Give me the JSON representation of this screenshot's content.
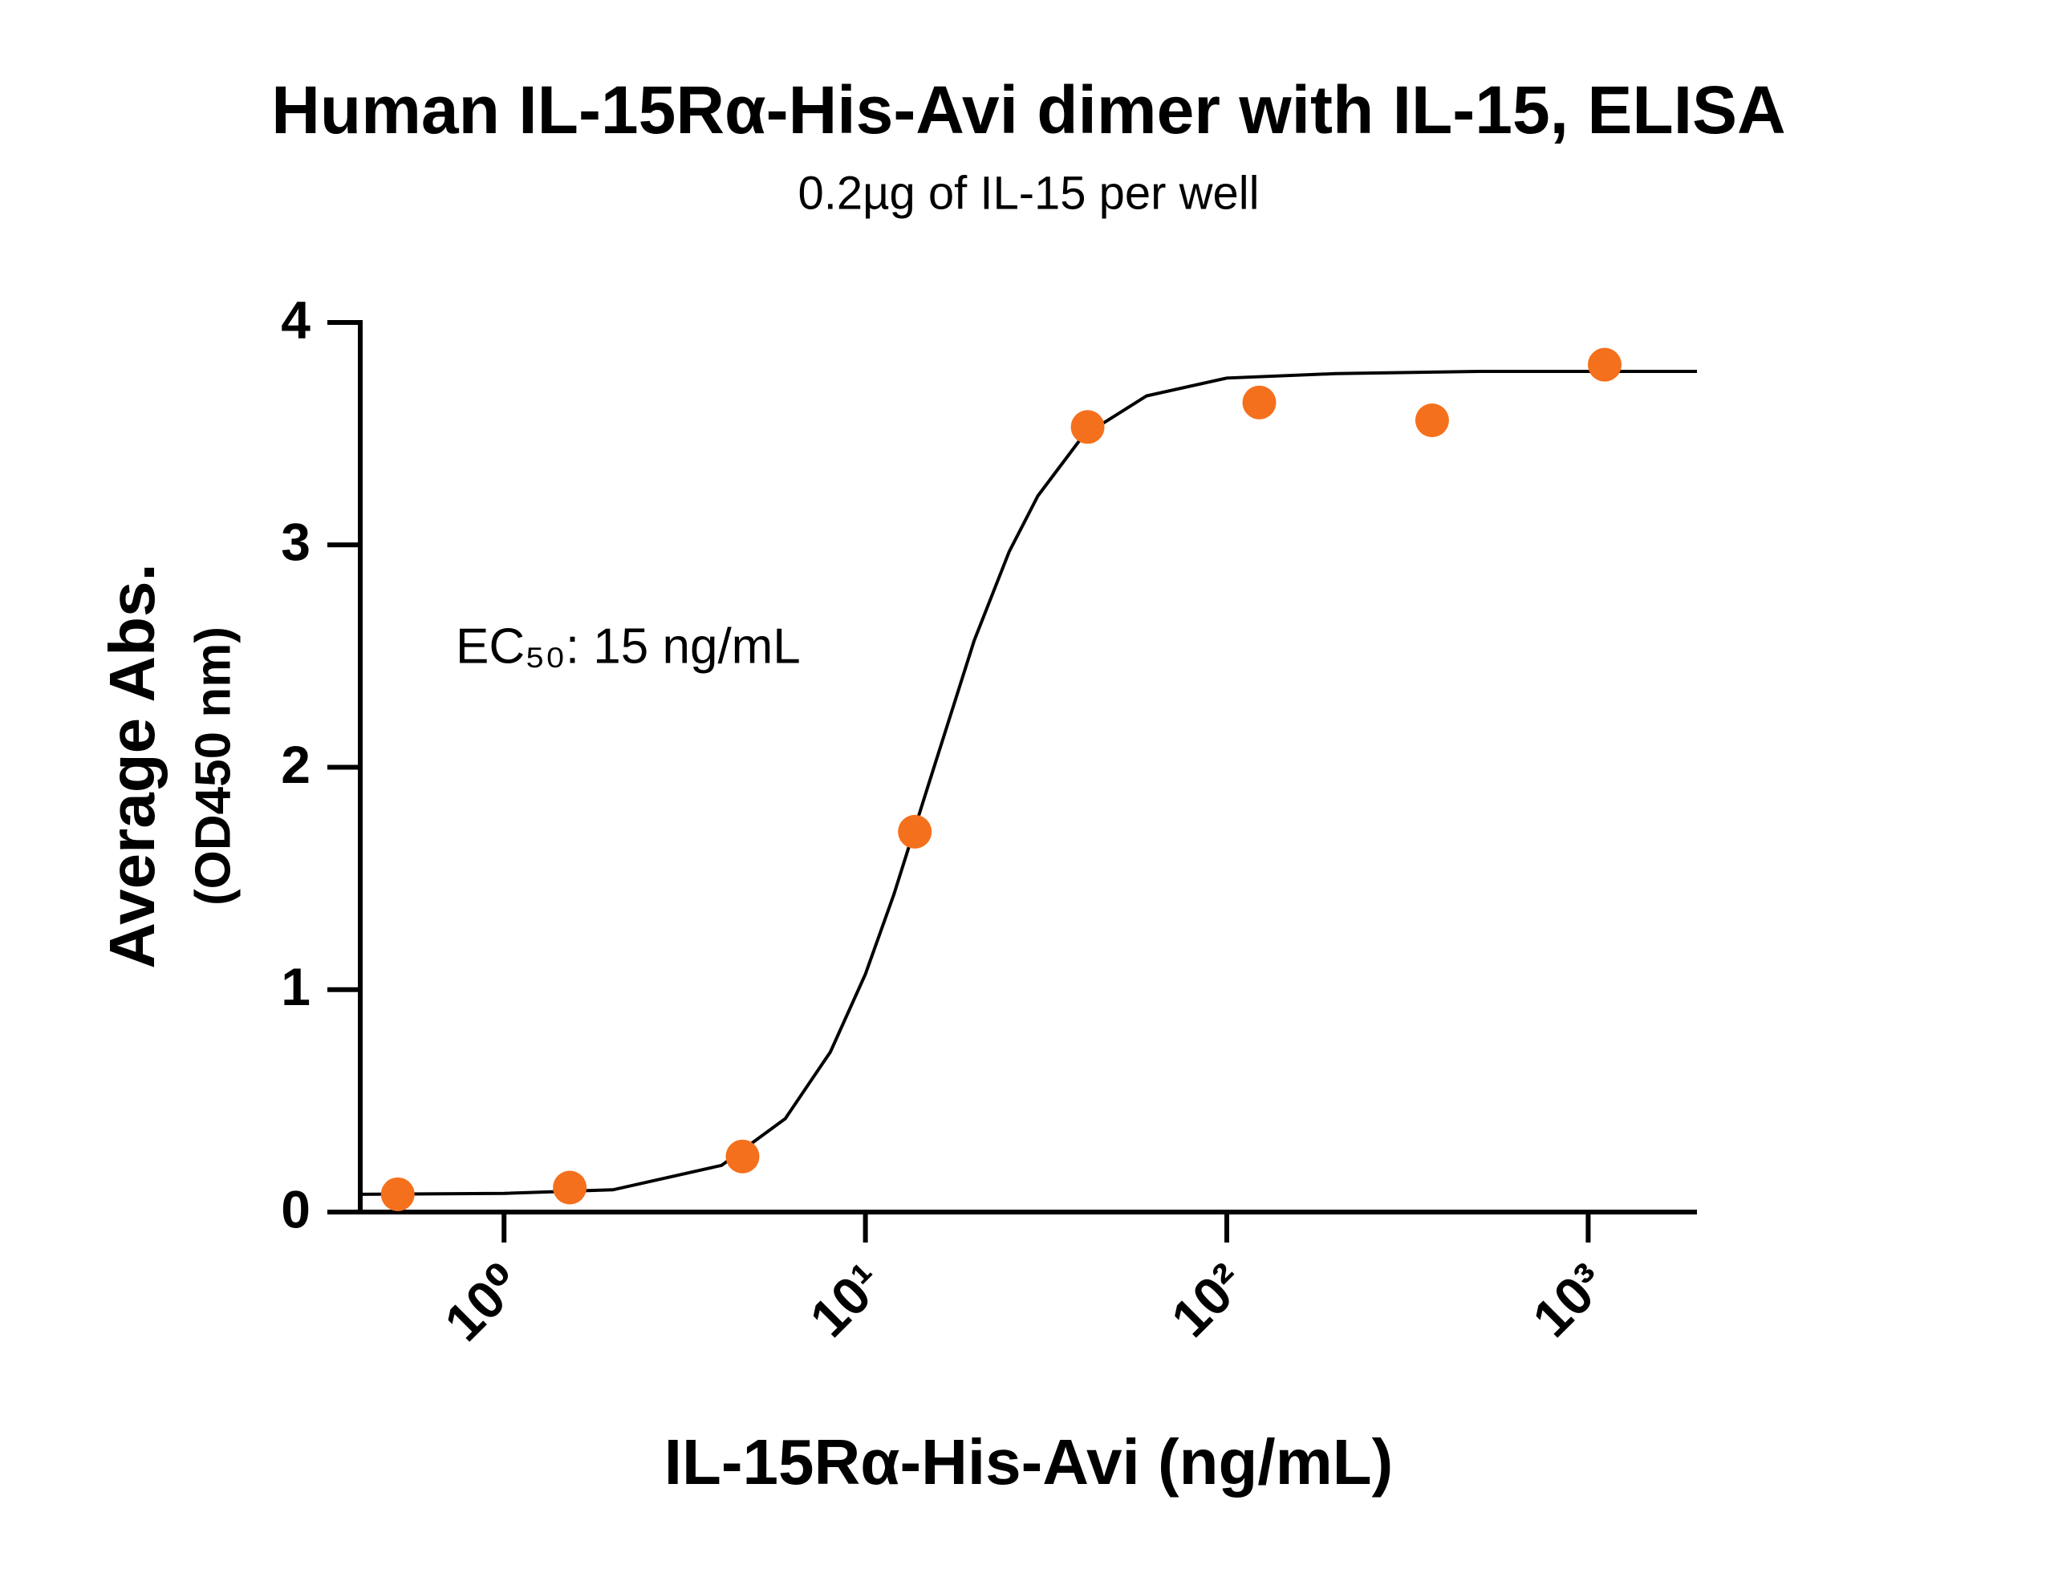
{
  "chart_data": {
    "type": "scatter",
    "title": "Human IL-15Rα-His-Avi dimer with IL-15, ELISA",
    "subtitle": "0.2µg of IL-15 per well",
    "xlabel": "IL-15Rα-His-Avi (ng/mL)",
    "ylabel": [
      "Average Abs.",
      "(OD450 nm)"
    ],
    "annotation": "EC₅₀: 15 ng/mL",
    "xscale": "log",
    "xlim": [
      0.4,
      2000
    ],
    "xticks": [
      {
        "value": 1,
        "label": "10⁰"
      },
      {
        "value": 10,
        "label": "10¹"
      },
      {
        "value": 100,
        "label": "10²"
      },
      {
        "value": 1000,
        "label": "10³"
      }
    ],
    "ylim": [
      0,
      4
    ],
    "yticks": [
      0,
      1,
      2,
      3,
      4
    ],
    "grid": false,
    "series": [
      {
        "kind": "points",
        "color": "#f5701c",
        "x": [
          0.508,
          1.52,
          4.57,
          13.7,
          41.2,
          123,
          370,
          1111
        ],
        "values": [
          0.08,
          0.11,
          0.25,
          1.71,
          3.53,
          3.64,
          3.56,
          3.81
        ]
      },
      {
        "kind": "line",
        "color": "#000000",
        "x": [
          0.4,
          1,
          2,
          4,
          6,
          8,
          10,
          12,
          15,
          20,
          25,
          30,
          40,
          60,
          100,
          200,
          500,
          2000
        ],
        "values": [
          0.08,
          0.084,
          0.1,
          0.21,
          0.42,
          0.72,
          1.07,
          1.43,
          1.93,
          2.57,
          2.97,
          3.22,
          3.49,
          3.67,
          3.75,
          3.77,
          3.78,
          3.78
        ]
      }
    ]
  }
}
